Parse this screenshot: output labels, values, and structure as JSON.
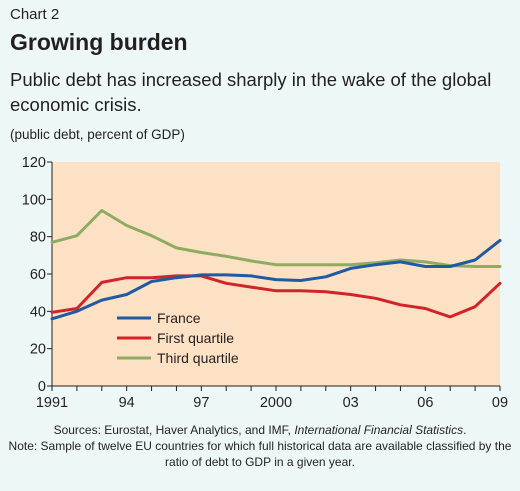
{
  "header": {
    "chart_label": "Chart 2",
    "title": "Growing burden",
    "subtitle": "Public debt has increased sharply in the wake of the global economic crisis.",
    "unit": "(public debt, percent of GDP)"
  },
  "footer": {
    "sources_prefix": "Sources: Eurostat, Haver Analytics, and IMF, ",
    "sources_italic": "International Financial Statistics",
    "sources_suffix": ".",
    "note": "Note: Sample of twelve EU countries for which full historical data are available classified by the ratio of debt to GDP in a given year."
  },
  "colors": {
    "plot_background": "#fde1c4",
    "page_background": "#eef7f8",
    "France": "#1f5aa3",
    "First quartile": "#d2232a",
    "Third quartile": "#8eab62"
  },
  "chart_data": {
    "type": "line",
    "title": "Growing burden",
    "xlabel": "",
    "ylabel": "",
    "xlim": [
      1991,
      2009
    ],
    "ylim": [
      0,
      120
    ],
    "x": [
      1991,
      1992,
      1993,
      1994,
      1995,
      1996,
      1997,
      1998,
      1999,
      2000,
      2001,
      2002,
      2003,
      2004,
      2005,
      2006,
      2007,
      2008,
      2009
    ],
    "x_tick_values": [
      1991,
      1994,
      1997,
      2000,
      2003,
      2006,
      2009
    ],
    "x_tick_labels": [
      "1991",
      "94",
      "97",
      "2000",
      "03",
      "06",
      "09"
    ],
    "y_ticks": [
      0,
      20,
      40,
      60,
      80,
      100,
      120
    ],
    "grid": false,
    "legend_position": "left-center",
    "series": [
      {
        "name": "France",
        "values": [
          36,
          40,
          46,
          49,
          56,
          58,
          59.5,
          59.5,
          59,
          57,
          56.5,
          58.5,
          63,
          65,
          66.5,
          64,
          64,
          67.5,
          78
        ]
      },
      {
        "name": "First quartile",
        "values": [
          39.5,
          41.5,
          55.5,
          58,
          58,
          59,
          59,
          55,
          53,
          51,
          51,
          50.5,
          49,
          47,
          43.5,
          41.5,
          37,
          42.5,
          55
        ]
      },
      {
        "name": "Third quartile",
        "values": [
          77,
          80.5,
          94,
          86,
          80.5,
          74,
          71.5,
          69.5,
          67,
          65,
          65,
          65,
          65,
          66,
          67.5,
          66.5,
          64.5,
          64,
          64
        ]
      }
    ]
  }
}
